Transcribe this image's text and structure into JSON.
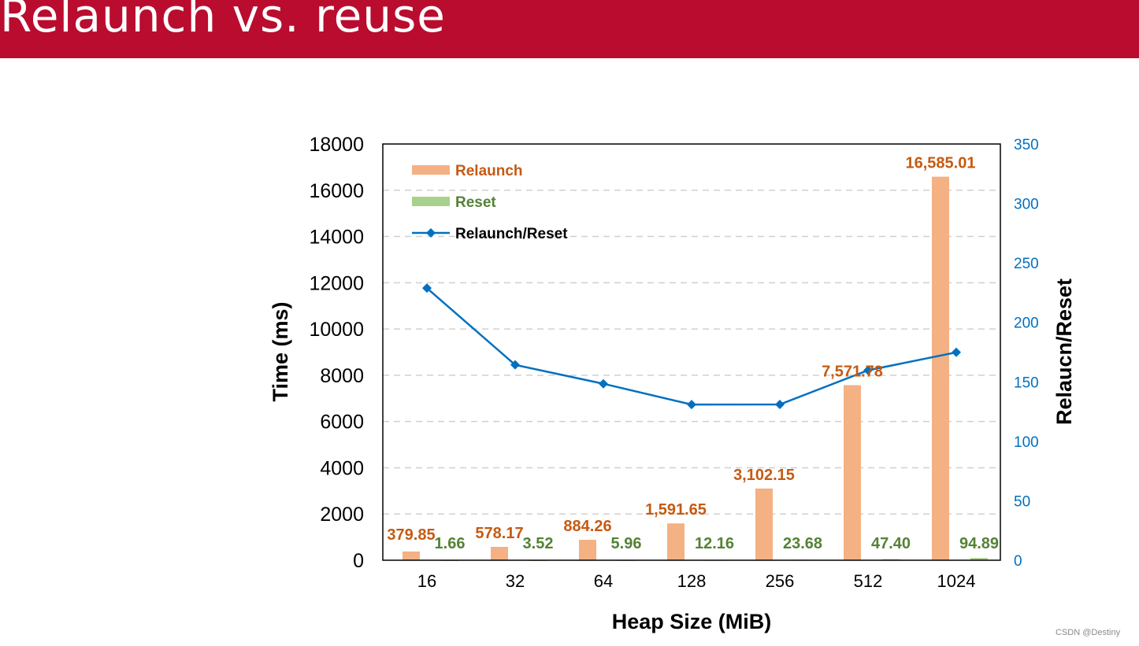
{
  "slide": {
    "title": "Relaunch vs. reuse",
    "watermark": "CSDN @Destiny"
  },
  "chart_data": {
    "type": "bar",
    "categories": [
      "16",
      "32",
      "64",
      "128",
      "256",
      "512",
      "1024"
    ],
    "series": [
      {
        "name": "Relaunch",
        "kind": "bar",
        "axis": "left",
        "color": "#f4b183",
        "label_color": "#c55a11",
        "values": [
          379.85,
          578.17,
          884.26,
          1591.65,
          3102.15,
          7571.78,
          16585.01
        ],
        "labels": [
          "379.85",
          "578.17",
          "884.26",
          "1,591.65",
          "3,102.15",
          "7,571.78",
          "16,585.01"
        ]
      },
      {
        "name": "Reset",
        "kind": "bar",
        "axis": "left",
        "color": "#a9d18e",
        "label_color": "#548235",
        "values": [
          1.66,
          3.52,
          5.96,
          12.16,
          23.68,
          47.4,
          94.89
        ],
        "labels": [
          "1.66",
          "3.52",
          "5.96",
          "12.16",
          "23.68",
          "47.40",
          "94.89"
        ]
      },
      {
        "name": "Relaunch/Reset",
        "kind": "line",
        "axis": "right",
        "color": "#0070c0",
        "label_color": "#000000",
        "values": [
          228.8,
          164.3,
          148.4,
          130.9,
          131.0,
          159.7,
          174.8
        ]
      }
    ],
    "xlabel": "Heap Size (MiB)",
    "ylabel": "Time (ms)",
    "y2label": "Relaucn/Reset",
    "ylim": [
      0,
      18000
    ],
    "y2lim": [
      0,
      350
    ],
    "yticks": [
      "0",
      "2000",
      "4000",
      "6000",
      "8000",
      "10000",
      "12000",
      "14000",
      "16000",
      "18000"
    ],
    "y2ticks": [
      "0",
      "50",
      "100",
      "150",
      "200",
      "250",
      "300",
      "350"
    ],
    "grid": true,
    "legend_position": "top-left",
    "axis_color": "#000000",
    "y2_tick_color": "#0070c0"
  }
}
